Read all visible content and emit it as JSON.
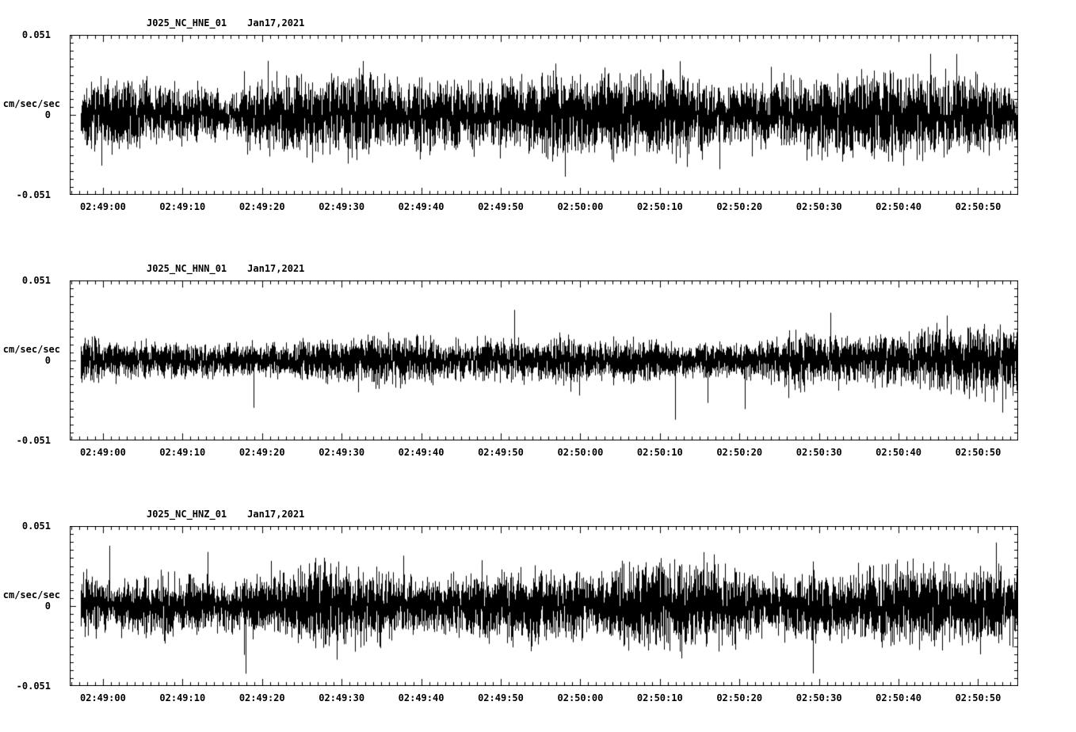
{
  "page": {
    "background_color": "#ffffff",
    "trace_color": "#000000"
  },
  "axes": {
    "first_tick_frac": 0.035,
    "tick_spacing_frac": 0.08389,
    "minor_per_major": 10
  },
  "chart_data": [
    {
      "type": "line",
      "title": "J025_NC_HNE_01   Jan17,2021",
      "station": "J025_NC_HNE_01",
      "date": "Jan17,2021",
      "ylabel": "cm/sec/sec",
      "ylim": [
        -0.051,
        0.051
      ],
      "y_tick_labels": {
        "max": "0.051",
        "zero": "0",
        "min": "-0.051"
      },
      "x_tick_labels": [
        "02:49:00",
        "02:49:10",
        "02:49:20",
        "02:49:30",
        "02:49:40",
        "02:49:50",
        "02:50:00",
        "02:50:10",
        "02:50:20",
        "02:50:30",
        "02:50:40",
        "02:50:50"
      ],
      "legend": "none",
      "grid": false,
      "signal": {
        "kind": "seismic-noise",
        "seed": 17,
        "band_amplitude": 0.017,
        "spike_amplitude": 0.044,
        "spike_prob": 0.012,
        "start_frac": 0.012
      }
    },
    {
      "type": "line",
      "title": "J025_NC_HNN_01   Jan17,2021",
      "station": "J025_NC_HNN_01",
      "date": "Jan17,2021",
      "ylabel": "cm/sec/sec",
      "ylim": [
        -0.051,
        0.051
      ],
      "y_tick_labels": {
        "max": "0.051",
        "zero": "0",
        "min": "-0.051"
      },
      "x_tick_labels": [
        "02:49:00",
        "02:49:10",
        "02:49:20",
        "02:49:30",
        "02:49:40",
        "02:49:50",
        "02:50:00",
        "02:50:10",
        "02:50:20",
        "02:50:30",
        "02:50:40",
        "02:50:50"
      ],
      "legend": "none",
      "grid": false,
      "signal": {
        "kind": "seismic-noise",
        "seed": 29,
        "band_amplitude": 0.014,
        "spike_amplitude": 0.04,
        "spike_prob": 0.011,
        "start_frac": 0.012
      }
    },
    {
      "type": "line",
      "title": "J025_NC_HNZ_01   Jan17,2021",
      "station": "J025_NC_HNZ_01",
      "date": "Jan17,2021",
      "ylabel": "cm/sec/sec",
      "ylim": [
        -0.051,
        0.051
      ],
      "y_tick_labels": {
        "max": "0.051",
        "zero": "0",
        "min": "-0.051"
      },
      "x_tick_labels": [
        "02:49:00",
        "02:49:10",
        "02:49:20",
        "02:49:30",
        "02:49:40",
        "02:49:50",
        "02:50:00",
        "02:50:10",
        "02:50:20",
        "02:50:30",
        "02:50:40",
        "02:50:50"
      ],
      "legend": "none",
      "grid": false,
      "signal": {
        "kind": "seismic-noise",
        "seed": 43,
        "band_amplitude": 0.018,
        "spike_amplitude": 0.045,
        "spike_prob": 0.013,
        "start_frac": 0.012
      }
    }
  ]
}
